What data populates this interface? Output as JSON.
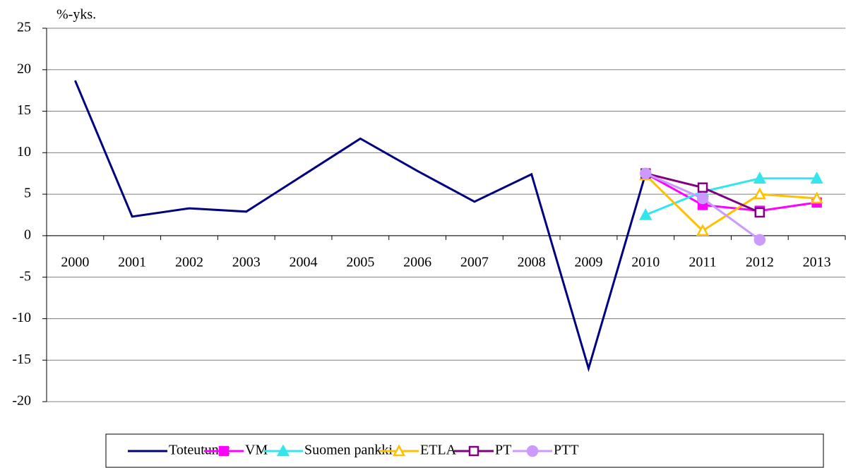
{
  "chart_data": {
    "type": "line",
    "y_label": "%-yks.",
    "categories": [
      "2000",
      "2001",
      "2002",
      "2003",
      "2004",
      "2005",
      "2006",
      "2007",
      "2008",
      "2009",
      "2010",
      "2011",
      "2012",
      "2013"
    ],
    "series": [
      {
        "name": "Toteutunut",
        "color": "#000080",
        "marker": "none",
        "filled": true,
        "values": [
          18.7,
          2.3,
          3.3,
          2.9,
          7.3,
          11.7,
          7.8,
          4.1,
          7.4,
          -16.0,
          7.5,
          null,
          null,
          null
        ]
      },
      {
        "name": "VM",
        "color": "#ff00ff",
        "marker": "square",
        "filled": true,
        "values": [
          null,
          null,
          null,
          null,
          null,
          null,
          null,
          null,
          null,
          null,
          7.5,
          3.7,
          3.0,
          4.0
        ]
      },
      {
        "name": "Suomen pankki",
        "color": "#33e6ee",
        "marker": "triangle",
        "filled": true,
        "values": [
          null,
          null,
          null,
          null,
          null,
          null,
          null,
          null,
          null,
          null,
          2.5,
          5.3,
          6.9,
          6.9
        ]
      },
      {
        "name": "ETLA",
        "color": "#ffc000",
        "marker": "triangle",
        "filled": false,
        "values": [
          null,
          null,
          null,
          null,
          null,
          null,
          null,
          null,
          null,
          null,
          7.3,
          0.6,
          5.0,
          4.5
        ]
      },
      {
        "name": "PT",
        "color": "#800080",
        "marker": "square",
        "filled": false,
        "values": [
          null,
          null,
          null,
          null,
          null,
          null,
          null,
          null,
          null,
          null,
          7.5,
          5.8,
          2.8,
          null
        ]
      },
      {
        "name": "PTT",
        "color": "#cc99ff",
        "marker": "circle",
        "filled": true,
        "values": [
          null,
          null,
          null,
          null,
          null,
          null,
          null,
          null,
          null,
          null,
          7.5,
          4.5,
          -0.5,
          null
        ]
      }
    ],
    "ylim": [
      -20,
      25
    ],
    "yticks": [
      -20,
      -15,
      -10,
      -5,
      0,
      5,
      10,
      15,
      20,
      25
    ],
    "grid": true,
    "legend": "bottom"
  }
}
